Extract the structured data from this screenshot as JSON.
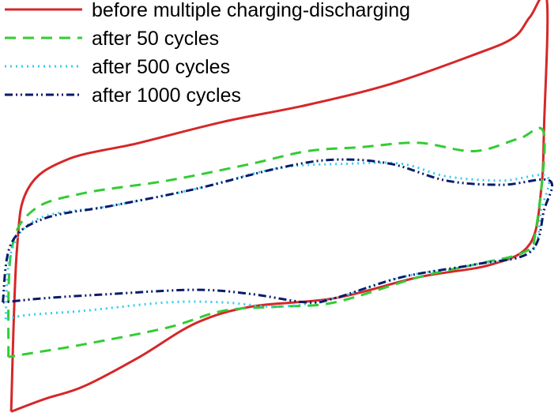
{
  "chart_data": {
    "type": "line",
    "title": "",
    "xlabel": "",
    "ylabel": "",
    "grid": false,
    "axes_visible": false,
    "legend_position": "top-left",
    "units": "relative (no axes shown)",
    "series": [
      {
        "name": "before multiple charging-discharging",
        "color": "#d62728",
        "dash": "solid",
        "points": [
          [
            0.02,
            0.98
          ],
          [
            0.03,
            0.6
          ],
          [
            0.05,
            0.45
          ],
          [
            0.12,
            0.38
          ],
          [
            0.25,
            0.34
          ],
          [
            0.4,
            0.29
          ],
          [
            0.55,
            0.25
          ],
          [
            0.7,
            0.2
          ],
          [
            0.85,
            0.13
          ],
          [
            0.92,
            0.09
          ],
          [
            0.95,
            0.04
          ],
          [
            0.98,
            0.0
          ],
          [
            0.975,
            0.3
          ],
          [
            0.97,
            0.45
          ],
          [
            0.95,
            0.58
          ],
          [
            0.88,
            0.63
          ],
          [
            0.75,
            0.66
          ],
          [
            0.6,
            0.71
          ],
          [
            0.45,
            0.73
          ],
          [
            0.35,
            0.77
          ],
          [
            0.25,
            0.85
          ],
          [
            0.15,
            0.92
          ],
          [
            0.08,
            0.95
          ],
          [
            0.02,
            0.98
          ]
        ]
      },
      {
        "name": "after 50 cycles",
        "color": "#33cc33",
        "dash": "long-dash",
        "points": [
          [
            0.015,
            0.85
          ],
          [
            0.02,
            0.6
          ],
          [
            0.06,
            0.5
          ],
          [
            0.15,
            0.46
          ],
          [
            0.3,
            0.43
          ],
          [
            0.45,
            0.39
          ],
          [
            0.55,
            0.36
          ],
          [
            0.65,
            0.35
          ],
          [
            0.75,
            0.34
          ],
          [
            0.85,
            0.36
          ],
          [
            0.93,
            0.33
          ],
          [
            0.975,
            0.32
          ],
          [
            0.96,
            0.55
          ],
          [
            0.94,
            0.6
          ],
          [
            0.85,
            0.63
          ],
          [
            0.75,
            0.66
          ],
          [
            0.6,
            0.72
          ],
          [
            0.5,
            0.73
          ],
          [
            0.4,
            0.74
          ],
          [
            0.3,
            0.78
          ],
          [
            0.15,
            0.82
          ],
          [
            0.06,
            0.84
          ],
          [
            0.015,
            0.85
          ]
        ]
      },
      {
        "name": "after 500 cycles",
        "color": "#33ccee",
        "dash": "dotted",
        "points": [
          [
            0.01,
            0.76
          ],
          [
            0.02,
            0.6
          ],
          [
            0.07,
            0.52
          ],
          [
            0.2,
            0.49
          ],
          [
            0.35,
            0.45
          ],
          [
            0.5,
            0.4
          ],
          [
            0.62,
            0.39
          ],
          [
            0.72,
            0.39
          ],
          [
            0.8,
            0.42
          ],
          [
            0.9,
            0.43
          ],
          [
            0.98,
            0.42
          ],
          [
            0.97,
            0.5
          ],
          [
            0.95,
            0.6
          ],
          [
            0.85,
            0.63
          ],
          [
            0.72,
            0.66
          ],
          [
            0.6,
            0.71
          ],
          [
            0.5,
            0.73
          ],
          [
            0.4,
            0.72
          ],
          [
            0.3,
            0.72
          ],
          [
            0.15,
            0.74
          ],
          [
            0.05,
            0.75
          ],
          [
            0.01,
            0.76
          ]
        ]
      },
      {
        "name": "after 1000 cycles",
        "color": "#0a1a6b",
        "dash": "dash-dot-dot",
        "points": [
          [
            0.005,
            0.72
          ],
          [
            0.02,
            0.58
          ],
          [
            0.08,
            0.52
          ],
          [
            0.2,
            0.49
          ],
          [
            0.35,
            0.45
          ],
          [
            0.5,
            0.4
          ],
          [
            0.6,
            0.38
          ],
          [
            0.7,
            0.39
          ],
          [
            0.8,
            0.43
          ],
          [
            0.9,
            0.44
          ],
          [
            0.985,
            0.43
          ],
          [
            0.975,
            0.5
          ],
          [
            0.95,
            0.6
          ],
          [
            0.85,
            0.63
          ],
          [
            0.72,
            0.66
          ],
          [
            0.6,
            0.71
          ],
          [
            0.55,
            0.72
          ],
          [
            0.45,
            0.7
          ],
          [
            0.35,
            0.69
          ],
          [
            0.2,
            0.7
          ],
          [
            0.08,
            0.71
          ],
          [
            0.005,
            0.72
          ]
        ]
      }
    ]
  }
}
